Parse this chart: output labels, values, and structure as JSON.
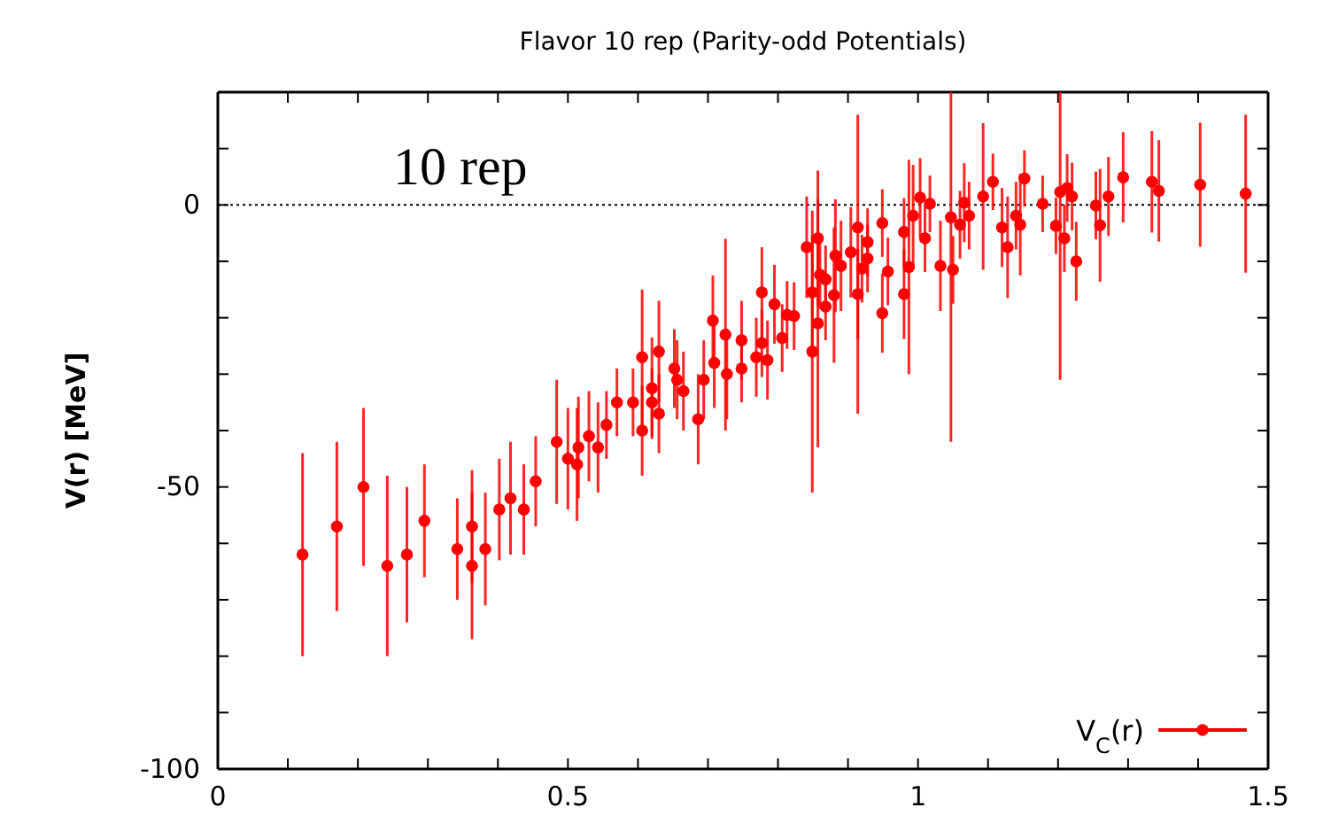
{
  "chart_data": {
    "type": "scatter",
    "title": "Flavor 10 rep (Parity-odd Potentials)",
    "ylabel": "V(r) [MeV]",
    "annotations": [
      "10 rep"
    ],
    "xlim": [
      0,
      1.5
    ],
    "ylim": [
      -100,
      20
    ],
    "xticks": [
      0,
      {
        "value": 0.1,
        "label": null
      },
      {
        "value": 0.2,
        "label": null
      },
      {
        "value": 0.3,
        "label": null
      },
      {
        "value": 0.4,
        "label": null
      },
      0.5,
      {
        "value": 0.6,
        "label": null
      },
      {
        "value": 0.7,
        "label": null
      },
      {
        "value": 0.8,
        "label": null
      },
      {
        "value": 0.9,
        "label": null
      },
      1,
      {
        "value": 1.1,
        "label": null
      },
      {
        "value": 1.2,
        "label": null
      },
      {
        "value": 1.3,
        "label": null
      },
      {
        "value": 1.4,
        "label": null
      },
      1.5
    ],
    "yticks": [
      -100,
      {
        "value": -90,
        "label": null
      },
      {
        "value": -80,
        "label": null
      },
      {
        "value": -70,
        "label": null
      },
      {
        "value": -60,
        "label": null
      },
      -50,
      {
        "value": -40,
        "label": null
      },
      {
        "value": -30,
        "label": null
      },
      {
        "value": -20,
        "label": null
      },
      {
        "value": -10,
        "label": null
      },
      0,
      {
        "value": 10,
        "label": null
      }
    ],
    "ref_lines": [
      {
        "axis": "y",
        "value": 0,
        "color": "#000000",
        "line_style": "dotted"
      }
    ],
    "legend": "bottom right",
    "marker": "circle",
    "grid": false,
    "series": [
      {
        "name": "V$_{C}$(r)",
        "color": "#ff0000",
        "x": [
          0.121,
          0.17,
          0.208,
          0.242,
          0.27,
          0.295,
          0.342,
          0.363,
          0.363,
          0.382,
          0.402,
          0.418,
          0.437,
          0.454,
          0.484,
          0.5,
          0.515,
          0.513,
          0.53,
          0.543,
          0.555,
          0.57,
          0.593,
          0.606,
          0.606,
          0.62,
          0.62,
          0.63,
          0.63,
          0.652,
          0.656,
          0.665,
          0.686,
          0.694,
          0.707,
          0.709,
          0.725,
          0.727,
          0.748,
          0.748,
          0.769,
          0.777,
          0.777,
          0.785,
          0.795,
          0.806,
          0.813,
          0.823,
          0.841,
          0.849,
          0.849,
          0.857,
          0.857,
          0.86,
          0.868,
          0.868,
          0.88,
          0.882,
          0.89,
          0.904,
          0.914,
          0.914,
          0.92,
          0.928,
          0.928,
          0.949,
          0.949,
          0.957,
          0.98,
          0.98,
          0.987,
          0.993,
          1.003,
          1.01,
          1.017,
          1.032,
          1.047,
          1.05,
          1.06,
          1.066,
          1.073,
          1.093,
          1.107,
          1.12,
          1.128,
          1.14,
          1.146,
          1.152,
          1.178,
          1.197,
          1.203,
          1.209,
          1.213,
          1.22,
          1.226,
          1.254,
          1.26,
          1.272,
          1.293,
          1.334,
          1.344,
          1.403,
          1.468
        ],
        "values": [
          -62,
          -57,
          -50,
          -64,
          -62,
          -56,
          -61,
          -57,
          -64,
          -61,
          -54,
          -52,
          -54,
          -49,
          -42,
          -45,
          -43,
          -46,
          -41,
          -43,
          -39,
          -35,
          -35,
          -27,
          -40,
          -32.5,
          -35,
          -26,
          -37,
          -29,
          -31,
          -33,
          -38,
          -31,
          -20.5,
          -28,
          -23,
          -30,
          -24,
          -29,
          -27,
          -24.5,
          -15.5,
          -27.5,
          -17.6,
          -23.6,
          -19.5,
          -19.7,
          -7.5,
          -26,
          -15.5,
          -5.9,
          -21,
          -12.4,
          -13.2,
          -18,
          -16,
          -9,
          -10.8,
          -8.4,
          -4,
          -15.8,
          -11.3,
          -6.6,
          -9.5,
          -3.2,
          -19.2,
          -11.8,
          -4.8,
          -15.8,
          -11,
          -1.9,
          1.3,
          -5.9,
          0.2,
          -10.8,
          -2.2,
          -11.5,
          -3.5,
          0.4,
          -1.9,
          1.5,
          4.1,
          -4,
          -7.5,
          -1.9,
          -3.5,
          4.7,
          0.2,
          -3.7,
          2.3,
          -5.9,
          3,
          1.5,
          -10,
          -0.1,
          -3.6,
          1.5,
          4.9,
          4.1,
          2.5,
          3.6,
          2
        ],
        "errors": [
          18,
          15,
          14,
          16,
          12,
          10,
          9,
          10,
          13,
          10,
          9,
          10,
          8,
          8,
          11,
          9,
          9,
          10,
          8,
          8,
          6,
          6,
          6,
          12,
          8,
          9,
          6,
          9,
          7,
          7,
          7,
          7,
          8,
          7,
          8,
          8,
          17,
          8,
          7,
          6,
          7,
          6,
          8,
          7,
          7,
          6,
          6,
          6,
          9,
          25,
          10,
          12,
          22,
          6,
          6,
          6,
          12,
          10,
          8,
          8,
          [
            -37,
            16
          ],
          8,
          6,
          6,
          6,
          6,
          7,
          6,
          6,
          8,
          19,
          9,
          7,
          6,
          5,
          8,
          [
            -42,
            20
          ],
          6,
          6,
          7,
          6,
          13,
          5,
          7,
          9,
          6,
          9,
          5,
          5,
          5,
          [
            -31,
            20
          ],
          6,
          6,
          6,
          7,
          6,
          10,
          7,
          8,
          9,
          9,
          11,
          14
        ]
      }
    ]
  }
}
